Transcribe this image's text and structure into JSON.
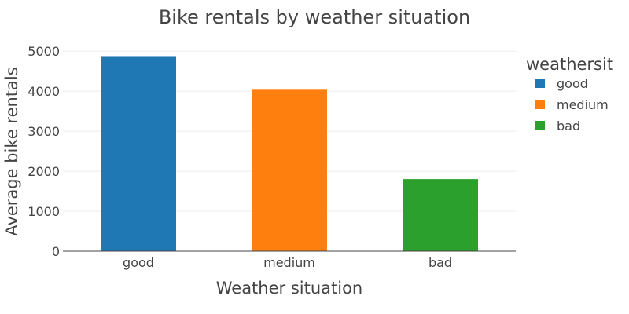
{
  "chart_data": {
    "type": "bar",
    "title": "Bike rentals by weather situation",
    "xlabel": "Weather situation",
    "ylabel": "Average bike rentals",
    "categories": [
      "good",
      "medium",
      "bad"
    ],
    "values": [
      4877,
      4036,
      1803
    ],
    "colors": [
      "#1f77b4",
      "#ff7f0e",
      "#2ca02c"
    ],
    "ylim": [
      0,
      5200
    ],
    "yticks": [
      0,
      1000,
      2000,
      3000,
      4000,
      5000
    ],
    "grid": true,
    "legend": {
      "title": "weathersit",
      "placement": "right",
      "entries": [
        "good",
        "medium",
        "bad"
      ]
    }
  }
}
